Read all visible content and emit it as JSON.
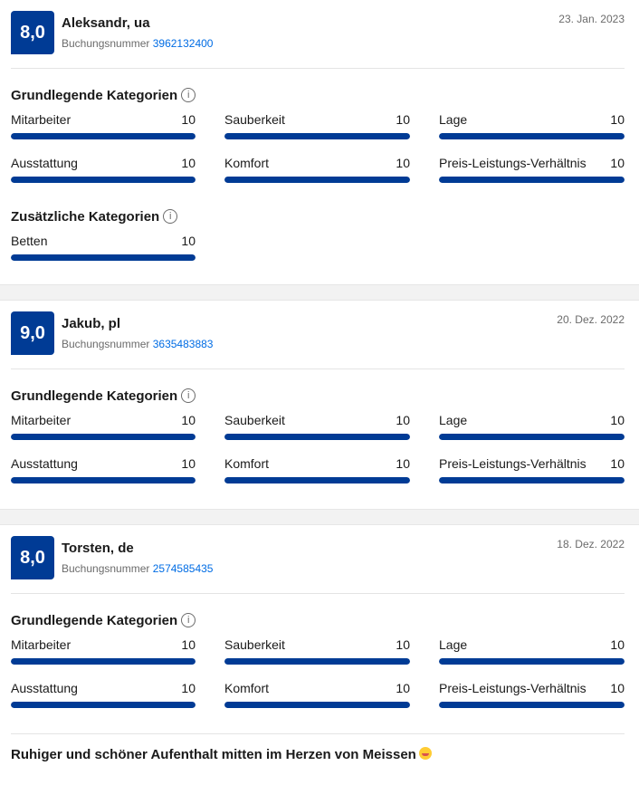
{
  "reviews": [
    {
      "score": "8,0",
      "name": "Aleksandr, ua",
      "booking_label": "Buchungsnummer",
      "booking_number": "3962132400",
      "date": "23. Jan. 2023",
      "basic_title": "Grundlegende Kategorien",
      "basic": [
        {
          "label": "Mitarbeiter",
          "value": "10",
          "fraction": 1.0
        },
        {
          "label": "Sauberkeit",
          "value": "10",
          "fraction": 1.0
        },
        {
          "label": "Lage",
          "value": "10",
          "fraction": 1.0
        },
        {
          "label": "Ausstattung",
          "value": "10",
          "fraction": 1.0
        },
        {
          "label": "Komfort",
          "value": "10",
          "fraction": 1.0
        },
        {
          "label": "Preis-Leistungs-Verhältnis",
          "value": "10",
          "fraction": 1.0
        }
      ],
      "extra_title": "Zusätzliche Kategorien",
      "extra": [
        {
          "label": "Betten",
          "value": "10",
          "fraction": 1.0
        }
      ]
    },
    {
      "score": "9,0",
      "name": "Jakub, pl",
      "booking_label": "Buchungsnummer",
      "booking_number": "3635483883",
      "date": "20. Dez. 2022",
      "basic_title": "Grundlegende Kategorien",
      "basic": [
        {
          "label": "Mitarbeiter",
          "value": "10",
          "fraction": 1.0
        },
        {
          "label": "Sauberkeit",
          "value": "10",
          "fraction": 1.0
        },
        {
          "label": "Lage",
          "value": "10",
          "fraction": 1.0
        },
        {
          "label": "Ausstattung",
          "value": "10",
          "fraction": 1.0
        },
        {
          "label": "Komfort",
          "value": "10",
          "fraction": 1.0
        },
        {
          "label": "Preis-Leistungs-Verhältnis",
          "value": "10",
          "fraction": 1.0
        }
      ]
    },
    {
      "score": "8,0",
      "name": "Torsten, de",
      "booking_label": "Buchungsnummer",
      "booking_number": "2574585435",
      "date": "18. Dez. 2022",
      "basic_title": "Grundlegende Kategorien",
      "basic": [
        {
          "label": "Mitarbeiter",
          "value": "10",
          "fraction": 1.0
        },
        {
          "label": "Sauberkeit",
          "value": "10",
          "fraction": 1.0
        },
        {
          "label": "Lage",
          "value": "10",
          "fraction": 1.0
        },
        {
          "label": "Ausstattung",
          "value": "10",
          "fraction": 1.0
        },
        {
          "label": "Komfort",
          "value": "10",
          "fraction": 1.0
        },
        {
          "label": "Preis-Leistungs-Verhältnis",
          "value": "10",
          "fraction": 1.0
        }
      ],
      "review_title": "Ruhiger und schöner Aufenthalt mitten im Herzen von Meissen",
      "review_title_icon": "smiling-face-icon"
    }
  ],
  "info_icon": "info-icon",
  "colors": {
    "score_bg": "#003b95",
    "bar_fill": "#003b95",
    "link": "#006ce4"
  }
}
